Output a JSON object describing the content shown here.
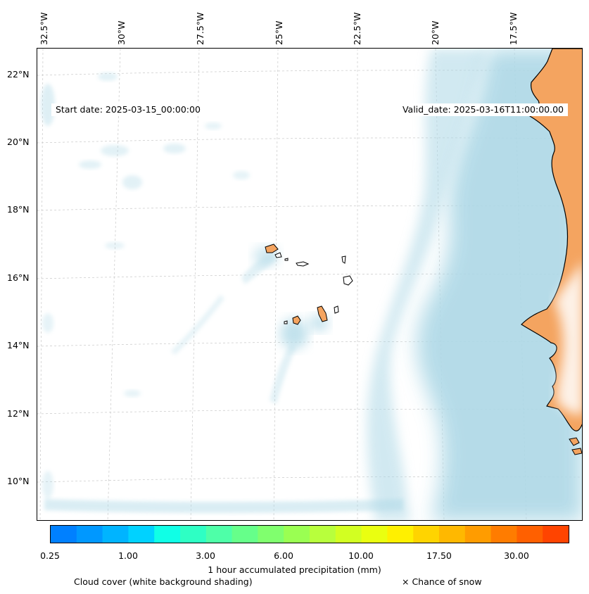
{
  "map": {
    "longitude_labels": [
      "32.5°W",
      "30°W",
      "27.5°W",
      "25°W",
      "22.5°W",
      "20°W",
      "17.5°W"
    ],
    "latitude_labels": [
      "22°N",
      "20°N",
      "18°N",
      "16°N",
      "14°N",
      "12°N",
      "10°N"
    ],
    "start_date": "Start date: 2025-03-15_00:00:00",
    "valid_date": "Valid_date: 2025-03-16T11:00:00.00",
    "colors": {
      "land": "#f4a460",
      "cloud": "#add8e6",
      "coast": "#000000",
      "grid": "#c8c8c8"
    }
  },
  "colorbar": {
    "tick_labels": [
      "0.25",
      "1.00",
      "3.00",
      "6.00",
      "10.00",
      "17.50",
      "30.00"
    ],
    "label": "1 hour accumulated precipitation (mm)",
    "colors": [
      "#0080ff",
      "#0098ff",
      "#00b4ff",
      "#00d2ff",
      "#10ffe6",
      "#2effc4",
      "#4effa8",
      "#66ff8a",
      "#80ff6e",
      "#9aff52",
      "#b8ff3c",
      "#d2ff22",
      "#eaff10",
      "#fff000",
      "#ffd400",
      "#ffb800",
      "#ff9c00",
      "#ff7c00",
      "#ff6000",
      "#ff4400"
    ]
  },
  "footer": {
    "cloud_note": "Cloud cover (white background shading)",
    "snow_note": "× Chance of snow"
  }
}
